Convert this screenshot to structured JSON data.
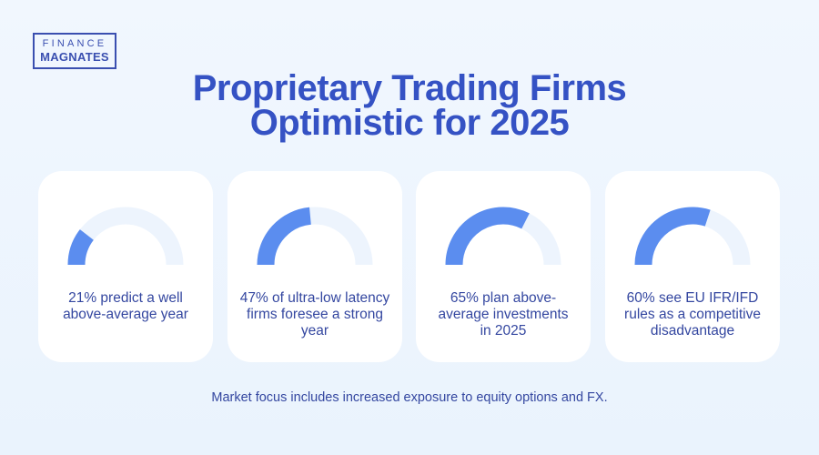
{
  "logo": {
    "line1": "FINANCE",
    "line2": "MAGNATES"
  },
  "title": {
    "line1": "Proprietary Trading Firms",
    "line2": "Optimistic for 2025"
  },
  "colors": {
    "gauge_fill": "#5b8def",
    "gauge_track": "#edf4fd",
    "title": "#3552c4",
    "text": "#3447a0"
  },
  "chart_data": {
    "type": "gauge",
    "range": [
      0,
      100
    ],
    "items": [
      {
        "value": 21,
        "label": "21% predict a well above-average year"
      },
      {
        "value": 47,
        "label": "47% of ultra-low latency firms foresee a strong year"
      },
      {
        "value": 65,
        "label": "65% plan above-average investments in 2025"
      },
      {
        "value": 60,
        "label": "60% see EU IFR/IFD rules as a competitive disadvantage"
      }
    ]
  },
  "footer": "Market focus includes increased exposure to equity options and FX."
}
